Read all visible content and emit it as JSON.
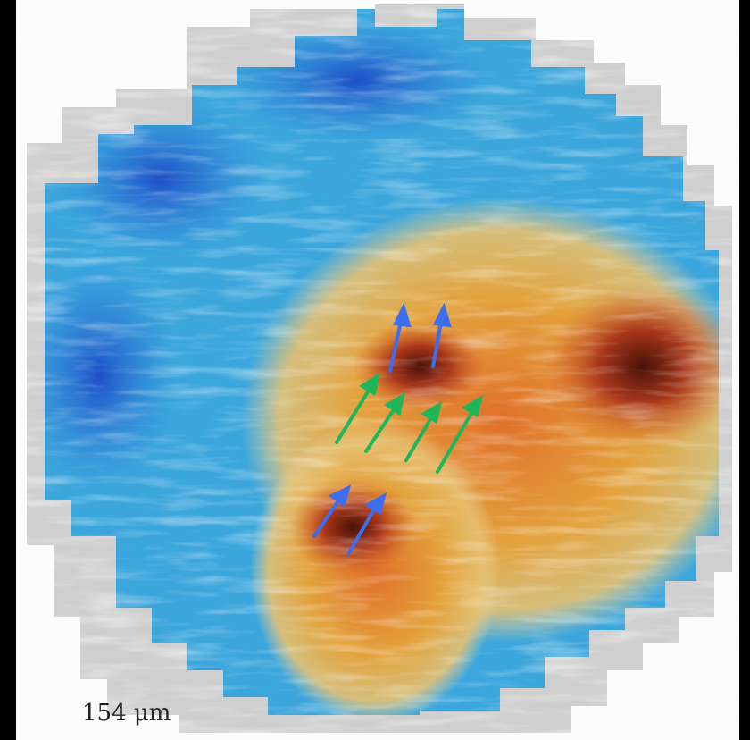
{
  "label": "154 μm"
}
